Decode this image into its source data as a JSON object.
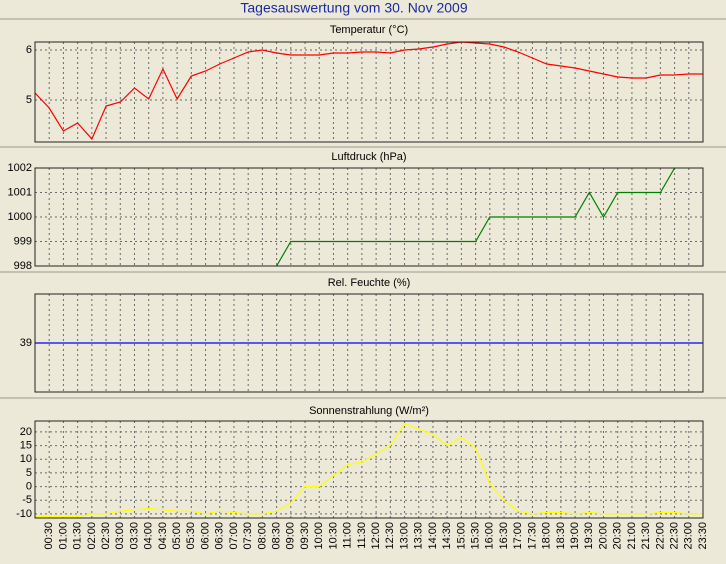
{
  "title": "Tagesauswertung vom 30. Nov 2009",
  "chart_data": [
    {
      "type": "line",
      "title": "Temperatur (°C)",
      "color": "#ff0000",
      "ylim": [
        4.16,
        6.16
      ],
      "yticks": [
        5,
        6
      ],
      "grid": true,
      "values": [
        5.14,
        4.84,
        4.38,
        4.54,
        4.22,
        4.88,
        4.96,
        5.24,
        5.02,
        5.62,
        5.02,
        5.48,
        5.58,
        5.72,
        5.84,
        5.96,
        6.0,
        5.94,
        5.9,
        5.9,
        5.9,
        5.94,
        5.94,
        5.96,
        5.96,
        5.94,
        6.0,
        6.02,
        6.06,
        6.12,
        6.16,
        6.14,
        6.12,
        6.06,
        5.96,
        5.84,
        5.72,
        5.68,
        5.64,
        5.58,
        5.52,
        5.46,
        5.44,
        5.44,
        5.5,
        5.5,
        5.52,
        5.52
      ]
    },
    {
      "type": "line",
      "title": "Luftdruck (hPa)",
      "color": "#008000",
      "ylim": [
        998,
        1002
      ],
      "yticks": [
        998,
        999,
        1000,
        1001,
        1002
      ],
      "grid": true,
      "values": [
        null,
        null,
        null,
        null,
        null,
        null,
        null,
        null,
        null,
        null,
        null,
        null,
        null,
        null,
        null,
        null,
        null,
        998,
        999,
        999,
        999,
        999,
        999,
        999,
        999,
        999,
        999,
        999,
        999,
        999,
        999,
        999,
        1000,
        1000,
        1000,
        1000,
        1000,
        1000,
        1000,
        1001,
        1000,
        1001,
        1001,
        1001,
        1001,
        1002,
        null,
        null
      ]
    },
    {
      "type": "line",
      "title": "Rel. Feuchte (%)",
      "color": "#0000ff",
      "ylim": [
        38,
        40
      ],
      "yticks": [
        39
      ],
      "grid": true,
      "values": [
        39,
        39,
        39,
        39,
        39,
        39,
        39,
        39,
        39,
        39,
        39,
        39,
        39,
        39,
        39,
        39,
        39,
        39,
        39,
        39,
        39,
        39,
        39,
        39,
        39,
        39,
        39,
        39,
        39,
        39,
        39,
        39,
        39,
        39,
        39,
        39,
        39,
        39,
        39,
        39,
        39,
        39,
        39,
        39,
        39,
        39,
        39,
        39
      ]
    },
    {
      "type": "line",
      "title": "Sonnenstrahlung (W/m²)",
      "color": "#ffff00",
      "ylim": [
        -11.5,
        24
      ],
      "yticks": [
        -10,
        -5,
        0,
        5,
        10,
        15,
        20
      ],
      "grid": true,
      "categories": [
        null,
        "00:30",
        "01:00",
        "01:30",
        "02:00",
        "02:30",
        "03:00",
        "03:30",
        "04:00",
        "04:30",
        "05:00",
        "05:30",
        "06:00",
        "06:30",
        "07:00",
        "07:30",
        "08:00",
        "08:30",
        "09:00",
        "09:30",
        "10:00",
        "10:30",
        "11:00",
        "11:30",
        "12:00",
        "12:30",
        "13:00",
        "13:30",
        "14:00",
        "14:30",
        "15:00",
        "15:30",
        "16:00",
        "16:30",
        "17:00",
        "17:30",
        "18:00",
        "18:30",
        "19:00",
        "19:30",
        "20:00",
        "20:30",
        "21:00",
        "21:30",
        "22:00",
        "22:30",
        "23:00",
        "23:30"
      ],
      "values": [
        -11,
        -11,
        -11,
        -11,
        -10,
        -10,
        -9,
        -8.5,
        -8,
        -8.5,
        -9,
        -9,
        -10,
        -9,
        -9.5,
        -10,
        -10,
        -9,
        -6,
        0,
        0,
        4,
        8,
        9,
        12,
        15,
        23,
        21,
        19,
        15,
        18,
        14,
        1,
        -5,
        -9,
        -10,
        -9.5,
        -9.5,
        -10,
        -9.5,
        -10,
        -10,
        -10,
        -10,
        -9.5,
        -9.5,
        -10,
        -10
      ]
    }
  ]
}
